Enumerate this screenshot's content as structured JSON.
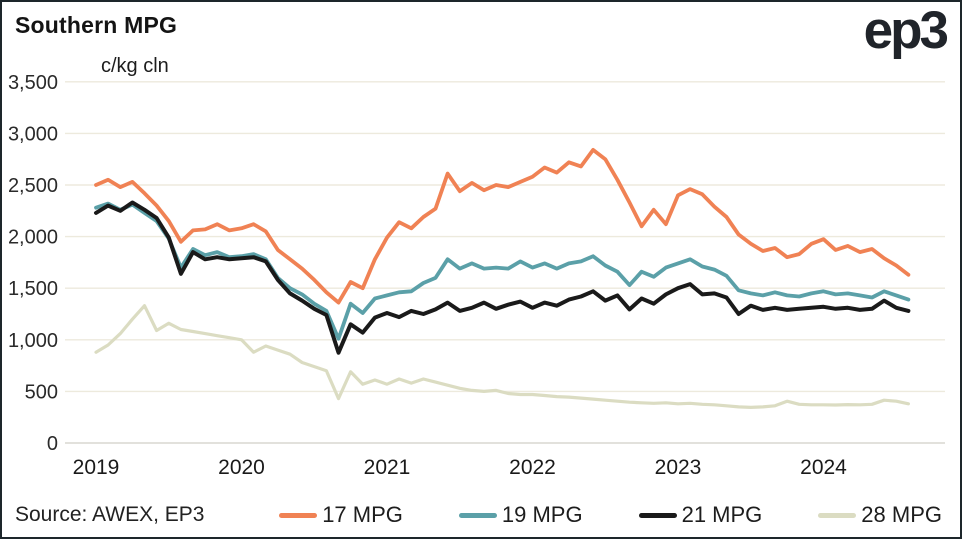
{
  "header": {
    "title": "Southern MPG",
    "logo": "ep3"
  },
  "footer": {
    "source": "Source: AWEX, EP3"
  },
  "colors": {
    "grid": "#EDEADD",
    "zero_line": "#D8D7D0",
    "background": "#FFFFFF",
    "border": "#1D262B",
    "text": "#1F1F1F"
  },
  "chart_data": {
    "type": "line",
    "title": "Southern MPG",
    "unit_label": "c/kg cln",
    "xlabel": "",
    "ylabel": "c/kg cln",
    "ylim": [
      0,
      3500
    ],
    "y_tick_step": 500,
    "y_tick_labels": [
      "0",
      "500",
      "1,000",
      "1,500",
      "2,000",
      "2,500",
      "3,000",
      "3,500"
    ],
    "x_tick_labels": [
      "2019",
      "2020",
      "2021",
      "2022",
      "2023",
      "2024"
    ],
    "x_start_year": 2019,
    "points_per_year": 12,
    "x_end": 2024.58,
    "grid": true,
    "legend_position": "bottom",
    "series": [
      {
        "name": "17 MPG",
        "color": "#F08254",
        "width": 3.8,
        "values": [
          2500,
          2550,
          2480,
          2530,
          2420,
          2300,
          2150,
          1950,
          2060,
          2070,
          2120,
          2060,
          2080,
          2120,
          2050,
          1870,
          1780,
          1690,
          1580,
          1460,
          1360,
          1560,
          1500,
          1780,
          1990,
          2140,
          2080,
          2190,
          2270,
          2610,
          2440,
          2520,
          2450,
          2500,
          2480,
          2530,
          2580,
          2670,
          2620,
          2720,
          2680,
          2840,
          2750,
          2550,
          2330,
          2100,
          2260,
          2120,
          2400,
          2460,
          2410,
          2290,
          2190,
          2020,
          1930,
          1860,
          1890,
          1800,
          1830,
          1930,
          1975,
          1870,
          1910,
          1850,
          1880,
          1790,
          1720,
          1630
        ]
      },
      {
        "name": "19 MPG",
        "color": "#5BA0A8",
        "width": 3.8,
        "values": [
          2280,
          2320,
          2260,
          2310,
          2230,
          2150,
          1980,
          1700,
          1880,
          1820,
          1850,
          1800,
          1810,
          1830,
          1780,
          1600,
          1500,
          1440,
          1350,
          1280,
          1010,
          1350,
          1260,
          1400,
          1430,
          1460,
          1470,
          1550,
          1600,
          1780,
          1690,
          1740,
          1690,
          1700,
          1690,
          1760,
          1700,
          1740,
          1690,
          1740,
          1760,
          1810,
          1720,
          1660,
          1530,
          1660,
          1610,
          1700,
          1740,
          1780,
          1710,
          1680,
          1620,
          1480,
          1450,
          1430,
          1460,
          1430,
          1420,
          1450,
          1470,
          1440,
          1450,
          1430,
          1410,
          1470,
          1430,
          1390
        ]
      },
      {
        "name": "21 MPG",
        "color": "#1A1A1A",
        "width": 4,
        "values": [
          2230,
          2300,
          2250,
          2330,
          2260,
          2180,
          1990,
          1640,
          1850,
          1780,
          1800,
          1780,
          1790,
          1800,
          1760,
          1580,
          1450,
          1380,
          1300,
          1240,
          875,
          1150,
          1070,
          1215,
          1260,
          1220,
          1280,
          1250,
          1295,
          1360,
          1280,
          1310,
          1360,
          1300,
          1340,
          1370,
          1310,
          1360,
          1330,
          1390,
          1420,
          1470,
          1380,
          1430,
          1295,
          1400,
          1350,
          1440,
          1500,
          1540,
          1440,
          1450,
          1410,
          1250,
          1330,
          1290,
          1310,
          1290,
          1300,
          1310,
          1320,
          1300,
          1310,
          1290,
          1300,
          1380,
          1310,
          1280
        ]
      },
      {
        "name": "28 MPG",
        "color": "#DBDCC2",
        "width": 3.2,
        "values": [
          880,
          950,
          1060,
          1200,
          1330,
          1090,
          1160,
          1100,
          1080,
          1060,
          1040,
          1020,
          1000,
          880,
          940,
          900,
          860,
          780,
          740,
          700,
          430,
          690,
          570,
          610,
          570,
          620,
          580,
          620,
          590,
          560,
          530,
          510,
          500,
          510,
          480,
          470,
          470,
          460,
          450,
          445,
          435,
          425,
          415,
          405,
          395,
          390,
          385,
          390,
          380,
          385,
          375,
          370,
          360,
          350,
          345,
          350,
          360,
          405,
          375,
          370,
          370,
          368,
          372,
          370,
          375,
          415,
          405,
          380
        ]
      }
    ]
  }
}
